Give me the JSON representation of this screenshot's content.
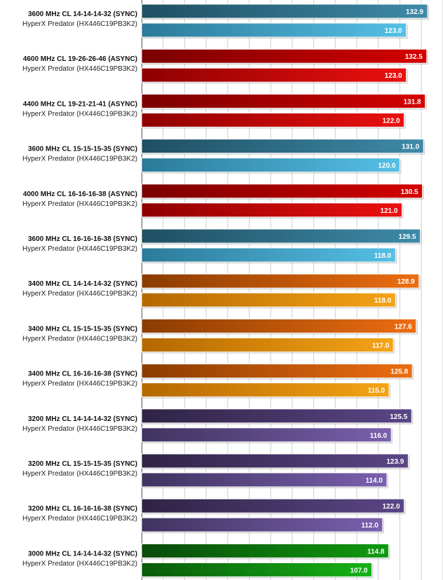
{
  "chart_data": {
    "type": "bar",
    "orientation": "horizontal",
    "grid": true,
    "xlim": [
      0,
      140
    ],
    "groups": [
      {
        "label": "3600 MHz CL 14-14-14-32 (SYNC)",
        "sublabel": "HyperX Predator (HX446C19PB3K2)",
        "values": [
          132.9,
          123.0
        ],
        "value_labels": [
          "132.9",
          "123.0"
        ],
        "color": "teal"
      },
      {
        "label": "4600 MHz CL 19-26-26-46 (ASYNC)",
        "sublabel": "HyperX Predator (HX446C19PB3K2)",
        "values": [
          132.5,
          123.0
        ],
        "value_labels": [
          "132.5",
          "123.0"
        ],
        "color": "red"
      },
      {
        "label": "4400 MHz CL 19-21-21-41 (ASYNC)",
        "sublabel": "HyperX Predator (HX446C19PB3K2)",
        "values": [
          131.8,
          122.0
        ],
        "value_labels": [
          "131.8",
          "122.0"
        ],
        "color": "red"
      },
      {
        "label": "3600 MHz CL 15-15-15-35 (SYNC)",
        "sublabel": "HyperX Predator (HX446C19PB3K2)",
        "values": [
          131.0,
          120.0
        ],
        "value_labels": [
          "131.0",
          "120.0"
        ],
        "color": "teal"
      },
      {
        "label": "4000 MHz CL 16-16-16-38 (ASYNC)",
        "sublabel": "HyperX Predator (HX446C19PB3K2)",
        "values": [
          130.5,
          121.0
        ],
        "value_labels": [
          "130.5",
          "121.0"
        ],
        "color": "red"
      },
      {
        "label": "3600 MHz CL 16-16-16-38 (SYNC)",
        "sublabel": "HyperX Predator (HX446C19PB3K2)",
        "values": [
          129.5,
          118.0
        ],
        "value_labels": [
          "129.5",
          "118.0"
        ],
        "color": "teal"
      },
      {
        "label": "3400 MHz CL 14-14-14-32 (SYNC)",
        "sublabel": "HyperX Predator (HX446C19PB3K2)",
        "values": [
          128.9,
          118.0
        ],
        "value_labels": [
          "128.9",
          "118.0"
        ],
        "color": "orange"
      },
      {
        "label": "3400 MHz CL 15-15-15-35 (SYNC)",
        "sublabel": "HyperX Predator (HX446C19PB3K2)",
        "values": [
          127.6,
          117.0
        ],
        "value_labels": [
          "127.6",
          "117.0"
        ],
        "color": "orange"
      },
      {
        "label": "3400 MHz CL 16-16-16-38 (SYNC)",
        "sublabel": "HyperX Predator (HX446C19PB3K2)",
        "values": [
          125.8,
          115.0
        ],
        "value_labels": [
          "125.8",
          "115.0"
        ],
        "color": "orange"
      },
      {
        "label": "3200 MHz CL 14-14-14-32 (SYNC)",
        "sublabel": "HyperX Predator (HX446C19PB3K2)",
        "values": [
          125.5,
          116.0
        ],
        "value_labels": [
          "125.5",
          "116.0"
        ],
        "color": "purple"
      },
      {
        "label": "3200 MHz CL 15-15-15-35 (SYNC)",
        "sublabel": "HyperX Predator (HX446C19PB3K2)",
        "values": [
          123.9,
          114.0
        ],
        "value_labels": [
          "123.9",
          "114.0"
        ],
        "color": "purple"
      },
      {
        "label": "3200 MHz CL 16-16-16-38 (SYNC)",
        "sublabel": "HyperX Predator (HX446C19PB3K2)",
        "values": [
          122.0,
          112.0
        ],
        "value_labels": [
          "122.0",
          "112.0"
        ],
        "color": "purple"
      },
      {
        "label": "3000 MHz CL 14-14-14-32 (SYNC)",
        "sublabel": "HyperX Predator (HX446C19PB3K2)",
        "values": [
          114.8,
          107.0
        ],
        "value_labels": [
          "114.8",
          "107.0"
        ],
        "color": "green"
      }
    ]
  },
  "colors": {
    "teal": [
      "#1f4f62",
      "#3e8aa8",
      "#2b7a99",
      "#56c0e6"
    ],
    "red": [
      "#7a0000",
      "#d40000",
      "#8e0000",
      "#ec1010"
    ],
    "orange": [
      "#8a3c00",
      "#ec6d12",
      "#b56800",
      "#f4a416"
    ],
    "purple": [
      "#2f2345",
      "#5a4686",
      "#3f335f",
      "#7a60ae"
    ],
    "green": [
      "#0a4a0a",
      "#0f9a0f",
      "#0a5a0a",
      "#16b216"
    ]
  }
}
